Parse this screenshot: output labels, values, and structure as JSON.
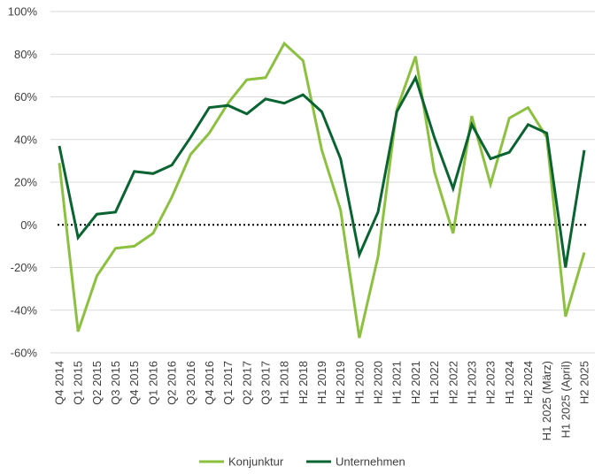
{
  "chart_data": {
    "type": "line",
    "x": [
      "Q4 2014",
      "Q1 2015",
      "Q2 2015",
      "Q3 2015",
      "Q4 2015",
      "Q1 2016",
      "Q2 2016",
      "Q3 2016",
      "Q4 2016",
      "Q1 2017",
      "Q2 2017",
      "Q3 2017",
      "H1 2018",
      "H2 2018",
      "H1 2019",
      "H2 2019",
      "H1 2020",
      "H2 2020",
      "H1 2021",
      "H2 2021",
      "H1 2022",
      "H2 2022",
      "H1 2023",
      "H2 2023",
      "H1 2024",
      "H2 2024",
      "H1 2025 (März)",
      "H1 2025 (April)",
      "H2 2025"
    ],
    "series": [
      {
        "name": "Konjunktur",
        "color": "#8cc13f",
        "values": [
          29,
          -50,
          -24,
          -11,
          -10,
          -4,
          13,
          33,
          43,
          57,
          68,
          69,
          85,
          77,
          35,
          7,
          -53,
          -15,
          54,
          79,
          25,
          -4,
          51,
          19,
          50,
          55,
          41,
          -43,
          -13
        ]
      },
      {
        "name": "Unternehmen",
        "color": "#0a6431",
        "values": [
          37,
          -6,
          5,
          6,
          25,
          24,
          28,
          41,
          55,
          56,
          52,
          59,
          57,
          61,
          53,
          31,
          -14,
          6,
          53,
          69,
          41,
          17,
          47,
          31,
          34,
          47,
          43,
          -20,
          35
        ]
      }
    ],
    "y_ticks": [
      "-60%",
      "-40%",
      "-20%",
      "0%",
      "20%",
      "40%",
      "60%",
      "80%",
      "100%"
    ],
    "ylim": [
      -60,
      100
    ],
    "title": "",
    "xlabel": "",
    "ylabel": "",
    "grid": true,
    "zero_line": "dotted",
    "legend_position": "bottom-center"
  }
}
